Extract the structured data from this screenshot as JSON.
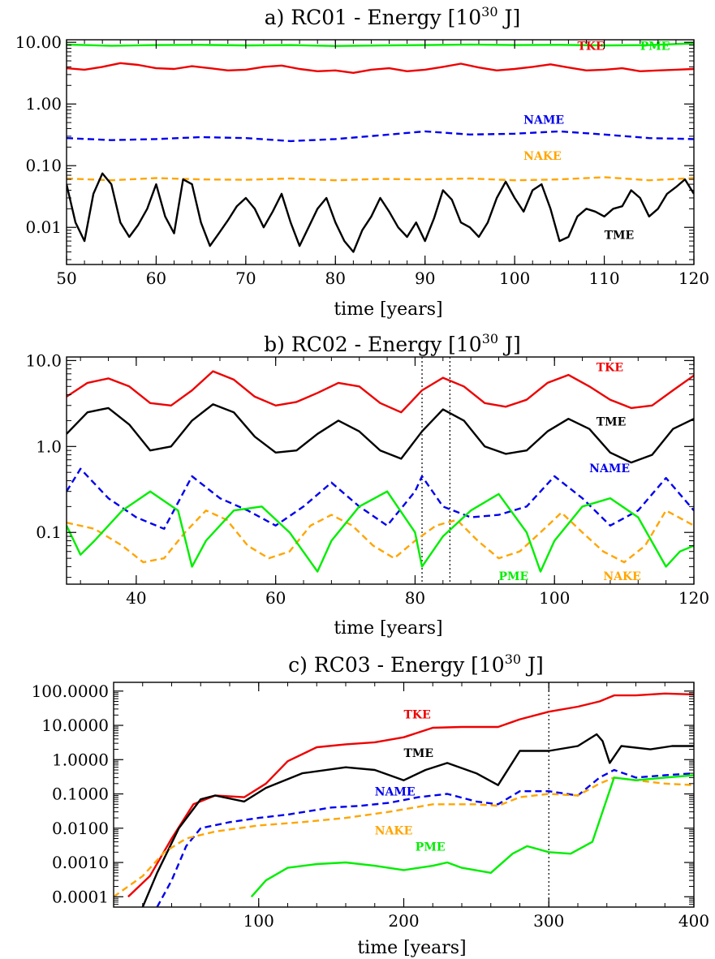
{
  "chart_data": [
    {
      "type": "line",
      "title": "a) RC01 - Energy [10",
      "title_exp": "30",
      "title_end": " J]",
      "xlabel": "time [years]",
      "ylabel": "",
      "yscale": "log",
      "xlim": [
        50,
        120
      ],
      "ylim": [
        0.0025,
        11
      ],
      "xticks": [
        50,
        60,
        70,
        80,
        90,
        100,
        110,
        120
      ],
      "xtick_labels": [
        "50",
        "60",
        "70",
        "80",
        "90",
        "100",
        "110",
        "120"
      ],
      "yticks": [
        0.01,
        0.1,
        1,
        10
      ],
      "ytick_labels": [
        "0.01",
        "0.10",
        "1.00",
        "10.00"
      ],
      "series": [
        {
          "name": "PME",
          "color": "#00ee00",
          "dash": false,
          "label_at": [
            114,
            7.5
          ],
          "x": [
            50,
            55,
            60,
            65,
            70,
            75,
            80,
            85,
            90,
            95,
            100,
            105,
            110,
            115,
            120
          ],
          "y": [
            9.2,
            8.8,
            9.0,
            9.1,
            8.9,
            9.0,
            8.7,
            8.9,
            9.0,
            9.2,
            9.0,
            9.1,
            8.9,
            9.0,
            9.6
          ]
        },
        {
          "name": "TKE",
          "color": "#ee0000",
          "dash": false,
          "label_at": [
            107,
            7.5
          ],
          "x": [
            50,
            52,
            54,
            56,
            58,
            60,
            62,
            64,
            66,
            68,
            70,
            72,
            74,
            76,
            78,
            80,
            82,
            84,
            86,
            88,
            90,
            92,
            94,
            96,
            98,
            100,
            102,
            104,
            106,
            108,
            110,
            112,
            114,
            116,
            118,
            120
          ],
          "y": [
            3.8,
            3.6,
            4.0,
            4.6,
            4.3,
            3.8,
            3.7,
            4.1,
            3.8,
            3.5,
            3.6,
            4.0,
            4.2,
            3.7,
            3.4,
            3.5,
            3.2,
            3.6,
            3.8,
            3.4,
            3.6,
            4.0,
            4.5,
            3.9,
            3.5,
            3.7,
            4.0,
            4.4,
            3.9,
            3.5,
            3.6,
            3.8,
            3.4,
            3.5,
            3.6,
            3.7
          ]
        },
        {
          "name": "NAME",
          "color": "#0000ee",
          "dash": true,
          "label_at": [
            101,
            0.48
          ],
          "x": [
            50,
            55,
            60,
            65,
            70,
            75,
            80,
            85,
            90,
            95,
            100,
            105,
            110,
            115,
            120
          ],
          "y": [
            0.28,
            0.26,
            0.27,
            0.29,
            0.28,
            0.25,
            0.27,
            0.31,
            0.36,
            0.32,
            0.33,
            0.36,
            0.32,
            0.28,
            0.27
          ]
        },
        {
          "name": "NAKE",
          "color": "#ffa500",
          "dash": true,
          "label_at": [
            101,
            0.125
          ],
          "x": [
            50,
            55,
            60,
            65,
            70,
            75,
            80,
            85,
            90,
            95,
            100,
            105,
            110,
            115,
            120
          ],
          "y": [
            0.062,
            0.058,
            0.063,
            0.06,
            0.059,
            0.062,
            0.058,
            0.061,
            0.06,
            0.062,
            0.058,
            0.06,
            0.065,
            0.058,
            0.063
          ]
        },
        {
          "name": "TME",
          "color": "#000000",
          "dash": false,
          "label_at": [
            110,
            0.0065
          ],
          "x": [
            50,
            51,
            52,
            53,
            54,
            55,
            56,
            57,
            58,
            59,
            60,
            61,
            62,
            63,
            64,
            65,
            66,
            67,
            68,
            69,
            70,
            71,
            72,
            73,
            74,
            75,
            76,
            77,
            78,
            79,
            80,
            81,
            82,
            83,
            84,
            85,
            86,
            87,
            88,
            89,
            90,
            91,
            92,
            93,
            94,
            95,
            96,
            97,
            98,
            99,
            100,
            101,
            102,
            103,
            104,
            105,
            106,
            107,
            108,
            109,
            110,
            111,
            112,
            113,
            114,
            115,
            116,
            117,
            118,
            119,
            120
          ],
          "y": [
            0.05,
            0.012,
            0.006,
            0.035,
            0.075,
            0.05,
            0.012,
            0.007,
            0.011,
            0.02,
            0.05,
            0.015,
            0.008,
            0.06,
            0.05,
            0.012,
            0.005,
            0.008,
            0.013,
            0.022,
            0.03,
            0.02,
            0.01,
            0.018,
            0.035,
            0.012,
            0.005,
            0.01,
            0.02,
            0.03,
            0.012,
            0.006,
            0.004,
            0.009,
            0.015,
            0.03,
            0.018,
            0.01,
            0.007,
            0.012,
            0.006,
            0.014,
            0.04,
            0.028,
            0.012,
            0.01,
            0.007,
            0.012,
            0.03,
            0.055,
            0.03,
            0.018,
            0.04,
            0.05,
            0.02,
            0.006,
            0.007,
            0.015,
            0.02,
            0.018,
            0.015,
            0.02,
            0.022,
            0.04,
            0.03,
            0.015,
            0.02,
            0.035,
            0.045,
            0.06,
            0.035
          ]
        }
      ]
    },
    {
      "type": "line",
      "title": "b) RC02 - Energy [10",
      "title_exp": "30",
      "title_end": " J]",
      "xlabel": "time [years]",
      "ylabel": "",
      "yscale": "log",
      "xlim": [
        30,
        120
      ],
      "ylim": [
        0.025,
        11
      ],
      "xticks": [
        40,
        60,
        80,
        100,
        120
      ],
      "xtick_labels": [
        "40",
        "60",
        "80",
        "100",
        "120"
      ],
      "yticks": [
        0.1,
        1,
        10
      ],
      "ytick_labels": [
        "0.1",
        "1.0",
        "10.0"
      ],
      "vlines": [
        81,
        85
      ],
      "series": [
        {
          "name": "TKE",
          "color": "#ee0000",
          "dash": false,
          "label_at": [
            106,
            7.5
          ],
          "x": [
            30,
            33,
            36,
            39,
            42,
            45,
            48,
            51,
            54,
            57,
            60,
            63,
            66,
            69,
            72,
            75,
            78,
            81,
            84,
            87,
            90,
            93,
            96,
            99,
            102,
            105,
            108,
            111,
            114,
            117,
            120
          ],
          "y": [
            3.8,
            5.5,
            6.2,
            5.0,
            3.2,
            3.0,
            4.5,
            7.5,
            6.0,
            3.8,
            3.0,
            3.3,
            4.2,
            5.5,
            5.0,
            3.2,
            2.5,
            4.5,
            6.3,
            5.0,
            3.2,
            2.9,
            3.5,
            5.5,
            6.8,
            5.0,
            3.5,
            2.8,
            3.0,
            4.5,
            6.7
          ]
        },
        {
          "name": "TME",
          "color": "#000000",
          "dash": false,
          "label_at": [
            106,
            1.75
          ],
          "x": [
            30,
            33,
            36,
            39,
            42,
            45,
            48,
            51,
            54,
            57,
            60,
            63,
            66,
            69,
            72,
            75,
            78,
            81,
            84,
            87,
            90,
            93,
            96,
            99,
            102,
            105,
            108,
            111,
            114,
            117,
            120
          ],
          "y": [
            1.4,
            2.5,
            2.8,
            1.8,
            0.9,
            1.0,
            2.0,
            3.1,
            2.5,
            1.3,
            0.85,
            0.9,
            1.4,
            2.0,
            1.5,
            0.9,
            0.72,
            1.5,
            2.7,
            2.0,
            1.0,
            0.82,
            0.9,
            1.5,
            2.1,
            1.6,
            0.85,
            0.65,
            0.8,
            1.6,
            2.1
          ]
        },
        {
          "name": "NAME",
          "color": "#0000ee",
          "dash": true,
          "label_at": [
            105,
            0.5
          ],
          "x": [
            30,
            32,
            36,
            40,
            44,
            48,
            52,
            56,
            60,
            64,
            68,
            72,
            76,
            80,
            81,
            84,
            88,
            92,
            96,
            100,
            104,
            108,
            112,
            116,
            120
          ],
          "y": [
            0.3,
            0.55,
            0.25,
            0.15,
            0.11,
            0.45,
            0.25,
            0.18,
            0.12,
            0.2,
            0.38,
            0.2,
            0.12,
            0.3,
            0.45,
            0.2,
            0.15,
            0.16,
            0.2,
            0.45,
            0.25,
            0.12,
            0.18,
            0.43,
            0.18
          ]
        },
        {
          "name": "NAKE",
          "color": "#ffa500",
          "dash": true,
          "label_at": [
            107,
            0.028
          ],
          "x": [
            30,
            34,
            38,
            41,
            44,
            47,
            50,
            53,
            56,
            59,
            62,
            65,
            68,
            71,
            74,
            77,
            80,
            83,
            86,
            89,
            92,
            95,
            98,
            101,
            104,
            107,
            110,
            113,
            116,
            120
          ],
          "y": [
            0.13,
            0.11,
            0.07,
            0.045,
            0.05,
            0.1,
            0.18,
            0.14,
            0.07,
            0.05,
            0.06,
            0.12,
            0.16,
            0.12,
            0.07,
            0.05,
            0.08,
            0.12,
            0.14,
            0.08,
            0.05,
            0.06,
            0.1,
            0.17,
            0.1,
            0.06,
            0.045,
            0.07,
            0.18,
            0.12
          ]
        },
        {
          "name": "PME",
          "color": "#00ee00",
          "dash": false,
          "label_at": [
            92,
            0.028
          ],
          "x": [
            30,
            32,
            34,
            38,
            42,
            46,
            48,
            50,
            54,
            58,
            62,
            66,
            68,
            72,
            76,
            80,
            81,
            84,
            88,
            92,
            96,
            98,
            100,
            104,
            108,
            112,
            116,
            118,
            120
          ],
          "y": [
            0.12,
            0.055,
            0.08,
            0.18,
            0.3,
            0.18,
            0.04,
            0.08,
            0.18,
            0.2,
            0.1,
            0.035,
            0.08,
            0.2,
            0.3,
            0.1,
            0.04,
            0.09,
            0.18,
            0.28,
            0.1,
            0.035,
            0.08,
            0.2,
            0.25,
            0.15,
            0.04,
            0.06,
            0.07
          ]
        }
      ]
    },
    {
      "type": "line",
      "title": "c) RC03 - Energy [10",
      "title_exp": "30",
      "title_end": " J]",
      "xlabel": "time [years]",
      "ylabel": "",
      "yscale": "log",
      "xlim": [
        0,
        400
      ],
      "ylim": [
        5e-05,
        180
      ],
      "xticks": [
        100,
        200,
        300,
        400
      ],
      "xtick_labels": [
        "100",
        "200",
        "300",
        "400"
      ],
      "yticks": [
        0.0001,
        0.001,
        0.01,
        0.1,
        1,
        10,
        100
      ],
      "ytick_labels": [
        "0.0001",
        "0.0010",
        "0.0100",
        "0.1000",
        "1.0000",
        "10.0000",
        "100.0000"
      ],
      "vlines": [
        300
      ],
      "series": [
        {
          "name": "TKE",
          "color": "#ee0000",
          "dash": false,
          "label_at": [
            200,
            16
          ],
          "x": [
            10,
            25,
            40,
            55,
            70,
            90,
            105,
            120,
            140,
            160,
            180,
            200,
            220,
            240,
            265,
            280,
            300,
            320,
            335,
            345,
            360,
            380,
            400
          ],
          "y": [
            0.0001,
            0.0004,
            0.005,
            0.05,
            0.09,
            0.08,
            0.2,
            0.9,
            2.3,
            2.8,
            3.2,
            4.5,
            8.5,
            9.0,
            9.0,
            15,
            25,
            35,
            50,
            75,
            75,
            85,
            80
          ]
        },
        {
          "name": "TME",
          "color": "#000000",
          "dash": false,
          "label_at": [
            200,
            1.2
          ],
          "x": [
            20,
            30,
            45,
            60,
            70,
            90,
            105,
            130,
            160,
            180,
            200,
            215,
            230,
            250,
            265,
            280,
            300,
            320,
            333,
            337,
            342,
            350,
            370,
            385,
            400
          ],
          "y": [
            5e-05,
            0.0005,
            0.01,
            0.07,
            0.09,
            0.06,
            0.15,
            0.4,
            0.6,
            0.5,
            0.25,
            0.5,
            0.8,
            0.4,
            0.18,
            1.8,
            1.8,
            2.5,
            5.5,
            3.5,
            0.8,
            2.5,
            2.0,
            2.5,
            2.5
          ]
        },
        {
          "name": "NAME",
          "color": "#0000ee",
          "dash": true,
          "label_at": [
            180,
            0.09
          ],
          "x": [
            30,
            40,
            50,
            60,
            80,
            100,
            120,
            150,
            170,
            190,
            210,
            230,
            250,
            265,
            280,
            300,
            320,
            335,
            345,
            360,
            380,
            400
          ],
          "y": [
            5e-05,
            0.0003,
            0.003,
            0.01,
            0.015,
            0.02,
            0.025,
            0.04,
            0.045,
            0.055,
            0.08,
            0.1,
            0.06,
            0.05,
            0.12,
            0.12,
            0.09,
            0.3,
            0.5,
            0.3,
            0.35,
            0.4
          ]
        },
        {
          "name": "NAKE",
          "color": "#ffa500",
          "dash": true,
          "label_at": [
            180,
            0.0065
          ],
          "x": [
            0,
            10,
            20,
            35,
            50,
            70,
            100,
            130,
            160,
            190,
            220,
            250,
            265,
            280,
            300,
            320,
            335,
            345,
            360,
            380,
            400
          ],
          "y": [
            0.0001,
            0.0002,
            0.0004,
            0.002,
            0.005,
            0.008,
            0.012,
            0.015,
            0.02,
            0.03,
            0.05,
            0.05,
            0.045,
            0.08,
            0.1,
            0.09,
            0.2,
            0.3,
            0.25,
            0.2,
            0.18
          ]
        },
        {
          "name": "PME",
          "color": "#00ee00",
          "dash": false,
          "label_at": [
            208,
            0.0022
          ],
          "x": [
            95,
            105,
            120,
            140,
            160,
            180,
            200,
            220,
            230,
            240,
            260,
            275,
            285,
            300,
            315,
            330,
            338,
            345,
            360,
            380,
            400
          ],
          "y": [
            0.0001,
            0.0003,
            0.0007,
            0.0009,
            0.001,
            0.0008,
            0.0006,
            0.0008,
            0.001,
            0.0007,
            0.0005,
            0.0018,
            0.003,
            0.002,
            0.0018,
            0.004,
            0.04,
            0.3,
            0.25,
            0.3,
            0.35
          ]
        }
      ]
    }
  ]
}
